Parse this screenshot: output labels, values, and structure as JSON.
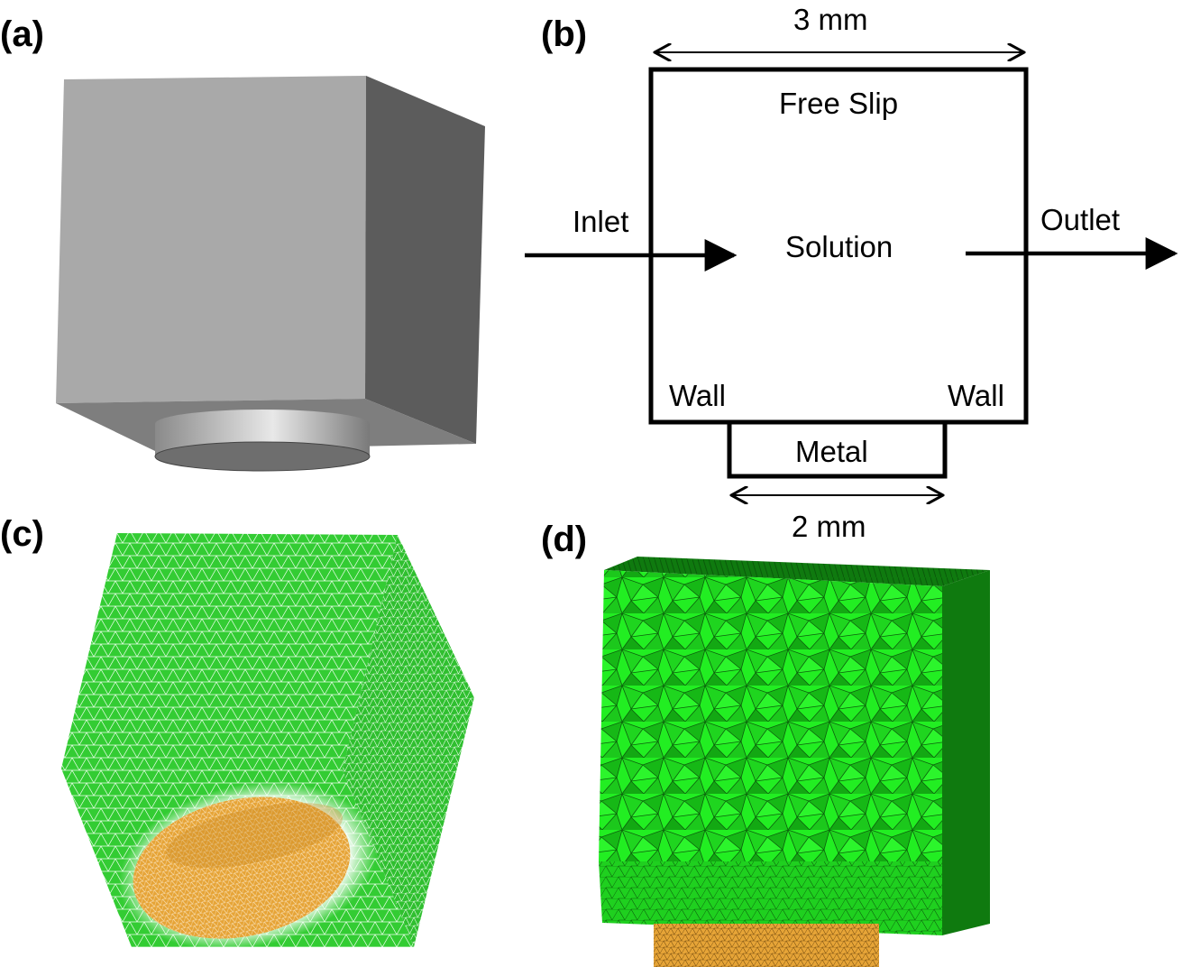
{
  "panels": {
    "a": {
      "label": "(a)"
    },
    "b": {
      "label": "(b)",
      "top_dimension": "3 mm",
      "bottom_dimension": "2 mm",
      "top_boundary": "Free Slip",
      "inlet": "Inlet",
      "outlet": "Outlet",
      "domain": "Solution",
      "wall_left": "Wall",
      "wall_right": "Wall",
      "metal": "Metal"
    },
    "c": {
      "label": "(c)"
    },
    "d": {
      "label": "(d)"
    }
  },
  "colors": {
    "box_front": "#a9a9a9",
    "box_side": "#5c5c5c",
    "box_bottom": "#7e7e7e",
    "mesh_green": "#33cc33",
    "mesh_green_light": "#22ee22",
    "mesh_green_dark": "#0f7a0f",
    "metal_orange": "#e6a437"
  }
}
